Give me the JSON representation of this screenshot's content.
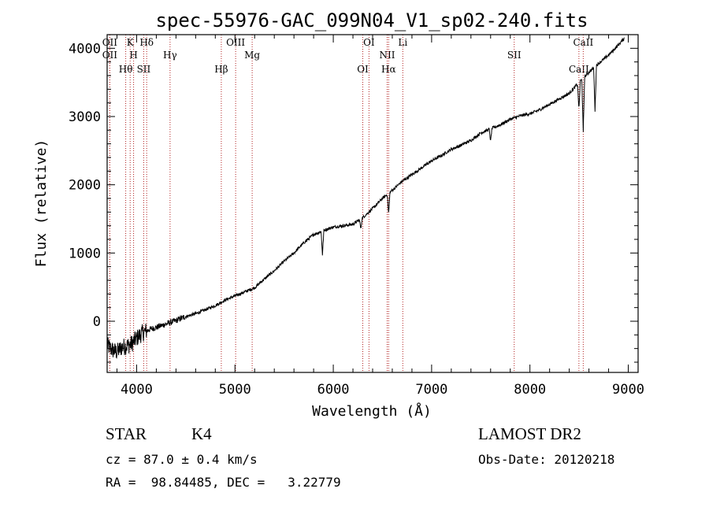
{
  "chart_data": {
    "type": "line",
    "title": "spec-55976-GAC_099N04_V1_sp02-240.fits",
    "xlabel": "Wavelength (Å)",
    "ylabel": "Flux (relative)",
    "xlim": [
      3700,
      9100
    ],
    "ylim": [
      -750,
      4200
    ],
    "x_ticks": [
      4000,
      5000,
      6000,
      7000,
      8000,
      9000
    ],
    "y_ticks": [
      0,
      1000,
      2000,
      3000,
      4000
    ],
    "grid": false,
    "series": [
      {
        "x": [
          3700,
          3750,
          3800,
          3850,
          3900,
          3950,
          4000,
          4050,
          4100,
          4150,
          4200,
          4300,
          4400,
          4500,
          4600,
          4700,
          4800,
          4900,
          5000,
          5100,
          5200,
          5300,
          5400,
          5500,
          5600,
          5700,
          5800,
          5900,
          6000,
          6100,
          6200,
          6300,
          6400,
          6500,
          6600,
          6700,
          6800,
          6900,
          7000,
          7100,
          7200,
          7300,
          7400,
          7500,
          7600,
          7700,
          7800,
          7900,
          8000,
          8100,
          8200,
          8300,
          8400,
          8500,
          8600,
          8700,
          8800,
          8900,
          8960
        ],
        "y": [
          -350,
          -420,
          -450,
          -380,
          -360,
          -330,
          -250,
          -180,
          -140,
          -110,
          -90,
          -40,
          10,
          70,
          110,
          170,
          230,
          310,
          370,
          430,
          490,
          620,
          740,
          880,
          1000,
          1150,
          1270,
          1330,
          1380,
          1400,
          1420,
          1520,
          1650,
          1800,
          1920,
          2050,
          2150,
          2250,
          2350,
          2430,
          2520,
          2580,
          2650,
          2760,
          2820,
          2880,
          2960,
          3010,
          3040,
          3100,
          3180,
          3260,
          3340,
          3500,
          3650,
          3780,
          3900,
          4050,
          4150
        ]
      }
    ],
    "absorption_features": [
      {
        "x": 5890,
        "depth": 350
      },
      {
        "x": 6280,
        "depth": 150
      },
      {
        "x": 6563,
        "depth": 300
      },
      {
        "x": 7600,
        "depth": 180
      },
      {
        "x": 8498,
        "depth": 400
      },
      {
        "x": 8542,
        "depth": 800
      },
      {
        "x": 8662,
        "depth": 650
      }
    ],
    "spectral_lines": [
      {
        "x": 3727,
        "label": "OII"
      },
      {
        "x": 3727,
        "label": "OII"
      },
      {
        "x": 3889,
        "label": "Hθ"
      },
      {
        "x": 3934,
        "label": "K"
      },
      {
        "x": 3969,
        "label": "H"
      },
      {
        "x": 4072,
        "label": "SII"
      },
      {
        "x": 4102,
        "label": "Hδ"
      },
      {
        "x": 4340,
        "label": "Hγ"
      },
      {
        "x": 4861,
        "label": "Hβ"
      },
      {
        "x": 5007,
        "label": "OIII"
      },
      {
        "x": 5175,
        "label": "Mg"
      },
      {
        "x": 6300,
        "label": "OI"
      },
      {
        "x": 6363,
        "label": "OI"
      },
      {
        "x": 6548,
        "label": "NII"
      },
      {
        "x": 6563,
        "label": "Hα"
      },
      {
        "x": 6707,
        "label": "Li"
      },
      {
        "x": 7840,
        "label": "SII"
      },
      {
        "x": 8498,
        "label": "CaII"
      },
      {
        "x": 8542,
        "label": "CaII"
      }
    ]
  },
  "footer": {
    "object_class": "STAR",
    "subclass": "K4",
    "redshift": "cz = 87.0 ± 0.4 km/s",
    "coords": "RA =  98.84485, DEC =   3.22779",
    "survey": "LAMOST DR2",
    "obs_date": "Obs-Date: 20120218"
  },
  "colors": {
    "spectrum": "#000000",
    "line_markers": "#b22222"
  }
}
